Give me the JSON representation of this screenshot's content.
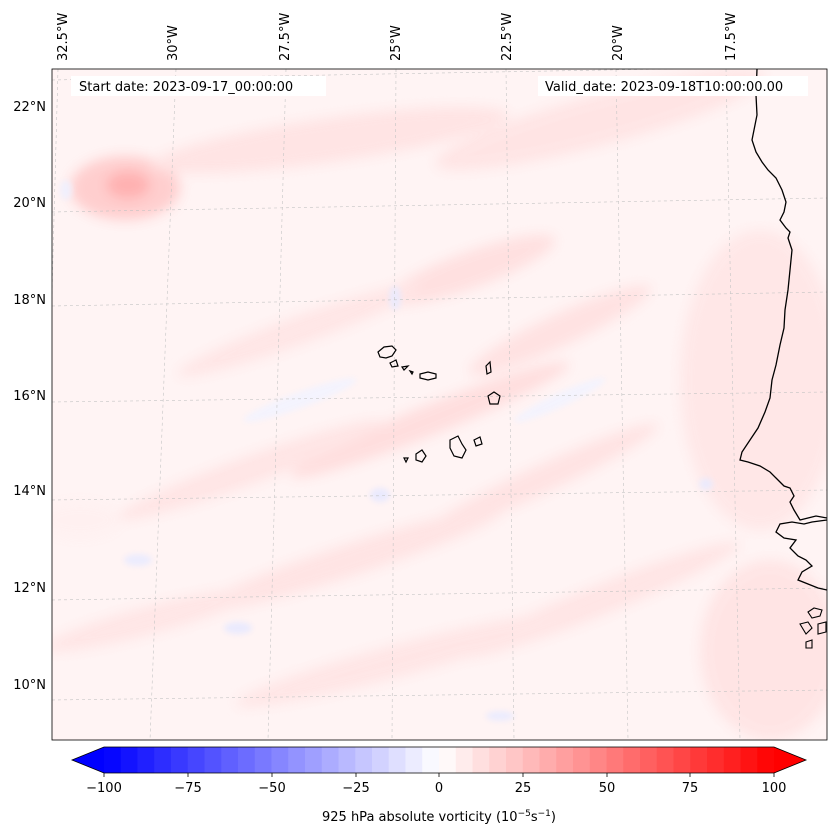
{
  "map": {
    "start_date": "Start date: 2023-09-17_00:00:00",
    "valid_date": "Valid_date: 2023-09-18T10:00:00.00",
    "lon_labels": [
      "32.5°W",
      "30°W",
      "27.5°W",
      "25°W",
      "22.5°W",
      "20°W",
      "17.5°W"
    ],
    "lat_labels": [
      "22°N",
      "20°N",
      "18°N",
      "16°N",
      "14°N",
      "12°N",
      "10°N"
    ],
    "features": [
      "Cape Verde islands",
      "West African coastline"
    ]
  },
  "colorbar": {
    "ticks": [
      "−100",
      "−75",
      "−50",
      "−25",
      "0",
      "25",
      "50",
      "75",
      "100"
    ],
    "label_main": "925 hPa absolute vorticity (10",
    "label_exp1": "−5",
    "label_mid": "s",
    "label_exp2": "−1",
    "label_end": ")",
    "min": -100,
    "max": 100,
    "low_color": "#0000ff",
    "mid_color": "#ffffff",
    "high_color": "#ff0000"
  },
  "colors": {
    "field_base": "#fff3f3",
    "field_pos": "#ffd9d9",
    "field_strong": "#ffb0b0",
    "field_neg": "#eef0ff",
    "coast": "#000000",
    "grid": "#bbbbbb"
  }
}
